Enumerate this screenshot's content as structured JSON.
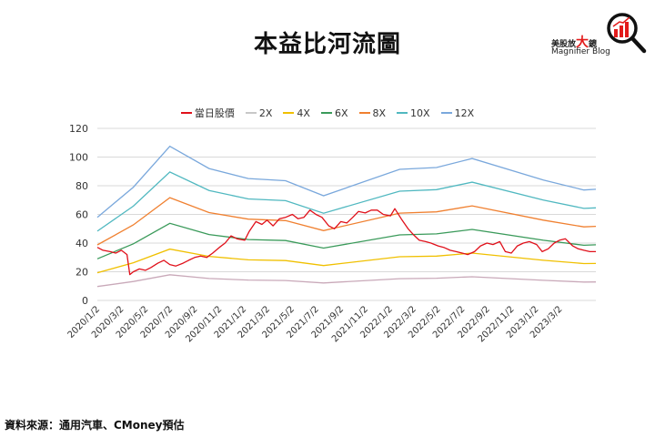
{
  "title": "本益比河流圖",
  "logo": {
    "text_cn_1": "美股放",
    "text_cn_big": "大",
    "text_cn_2": "鏡",
    "text_en": "Magnifier Blog",
    "icon": "magnifier-chart-icon"
  },
  "source": "資料來源：通用汽車、CMoney預估",
  "chart_data": {
    "type": "line",
    "title": "",
    "xlabel": "",
    "ylabel": "",
    "ylim": [
      0,
      120
    ],
    "yticks": [
      0,
      20,
      40,
      60,
      80,
      100,
      120
    ],
    "xlim": [
      "2020/1/2",
      "2023/5/31"
    ],
    "xticks": [
      "2020/1/2",
      "2020/3/2",
      "2020/5/2",
      "2020/7/2",
      "2020/9/2",
      "2020/11/2",
      "2021/1/2",
      "2021/3/2",
      "2021/5/2",
      "2021/7/2",
      "2021/9/2",
      "2021/11/2",
      "2022/1/2",
      "2022/3/2",
      "2022/5/2",
      "2022/7/2",
      "2022/9/2",
      "2022/11/2",
      "2023/1/2",
      "2023/3/2"
    ],
    "grid": true,
    "legend_position": "top",
    "price": {
      "name": "當日股價",
      "color": "#e0101a",
      "points": [
        [
          "2020/1/2",
          37
        ],
        [
          "2020/1/16",
          35
        ],
        [
          "2020/2/3",
          34
        ],
        [
          "2020/2/17",
          33
        ],
        [
          "2020/3/2",
          35
        ],
        [
          "2020/3/16",
          32
        ],
        [
          "2020/3/23",
          18
        ],
        [
          "2020/4/1",
          20
        ],
        [
          "2020/4/16",
          22
        ],
        [
          "2020/5/1",
          21
        ],
        [
          "2020/5/15",
          23
        ],
        [
          "2020/6/1",
          26
        ],
        [
          "2020/6/16",
          28
        ],
        [
          "2020/7/1",
          25
        ],
        [
          "2020/7/16",
          24
        ],
        [
          "2020/8/3",
          26
        ],
        [
          "2020/8/17",
          28
        ],
        [
          "2020/9/1",
          30
        ],
        [
          "2020/9/16",
          31
        ],
        [
          "2020/10/1",
          30
        ],
        [
          "2020/10/16",
          33
        ],
        [
          "2020/11/2",
          37
        ],
        [
          "2020/11/16",
          40
        ],
        [
          "2020/12/1",
          45
        ],
        [
          "2020/12/16",
          43
        ],
        [
          "2021/1/4",
          42
        ],
        [
          "2021/1/15",
          48
        ],
        [
          "2021/2/1",
          55
        ],
        [
          "2021/2/16",
          53
        ],
        [
          "2021/3/1",
          56
        ],
        [
          "2021/3/16",
          52
        ],
        [
          "2021/4/1",
          57
        ],
        [
          "2021/4/16",
          58
        ],
        [
          "2021/5/3",
          60
        ],
        [
          "2021/5/17",
          57
        ],
        [
          "2021/6/1",
          58
        ],
        [
          "2021/6/16",
          63
        ],
        [
          "2021/7/1",
          60
        ],
        [
          "2021/7/16",
          58
        ],
        [
          "2021/8/2",
          52
        ],
        [
          "2021/8/16",
          50
        ],
        [
          "2021/9/1",
          55
        ],
        [
          "2021/9/16",
          54
        ],
        [
          "2021/10/1",
          58
        ],
        [
          "2021/10/15",
          62
        ],
        [
          "2021/11/1",
          61
        ],
        [
          "2021/11/16",
          63
        ],
        [
          "2021/12/1",
          63
        ],
        [
          "2021/12/16",
          60
        ],
        [
          "2022/1/3",
          59
        ],
        [
          "2022/1/14",
          64
        ],
        [
          "2022/2/1",
          56
        ],
        [
          "2022/2/16",
          50
        ],
        [
          "2022/3/1",
          46
        ],
        [
          "2022/3/16",
          42
        ],
        [
          "2022/4/1",
          41
        ],
        [
          "2022/4/14",
          40
        ],
        [
          "2022/5/2",
          38
        ],
        [
          "2022/5/16",
          37
        ],
        [
          "2022/6/1",
          35
        ],
        [
          "2022/6/16",
          34
        ],
        [
          "2022/7/1",
          33
        ],
        [
          "2022/7/15",
          32
        ],
        [
          "2022/8/1",
          34
        ],
        [
          "2022/8/16",
          38
        ],
        [
          "2022/9/1",
          40
        ],
        [
          "2022/9/16",
          39
        ],
        [
          "2022/10/3",
          41
        ],
        [
          "2022/10/17",
          34
        ],
        [
          "2022/11/1",
          33
        ],
        [
          "2022/11/16",
          38
        ],
        [
          "2022/12/1",
          40
        ],
        [
          "2022/12/16",
          41
        ],
        [
          "2023/1/3",
          39
        ],
        [
          "2023/1/17",
          34
        ],
        [
          "2023/2/1",
          36
        ],
        [
          "2023/2/16",
          40
        ],
        [
          "2023/3/1",
          42
        ],
        [
          "2023/3/16",
          43
        ],
        [
          "2023/4/3",
          38
        ],
        [
          "2023/4/17",
          36
        ],
        [
          "2023/5/1",
          35
        ],
        [
          "2023/5/16",
          34
        ],
        [
          "2023/5/31",
          34
        ]
      ]
    },
    "band_dates": [
      "2020/1/2",
      "2020/4/1",
      "2020/7/1",
      "2020/10/7",
      "2021/1/13",
      "2021/4/16",
      "2021/7/20",
      "2022/1/26",
      "2022/4/28",
      "2022/7/26",
      "2023/1/20",
      "2023/5/1",
      "2023/5/31"
    ],
    "series": [
      {
        "name": "2X",
        "color": "#c9a9b9",
        "legend_color": "#c8c8c8",
        "values": [
          9.7,
          13.2,
          17.9,
          15.3,
          14.2,
          13.9,
          12.2,
          15.2,
          15.5,
          16.5,
          14,
          12.8,
          12.9
        ]
      },
      {
        "name": "4X",
        "color": "#f0c000",
        "values": [
          19.3,
          26.3,
          35.8,
          30.7,
          28.3,
          27.8,
          24.3,
          30.5,
          30.9,
          33,
          28,
          25.7,
          25.8
        ]
      },
      {
        "name": "6X",
        "color": "#3a9a5a",
        "values": [
          29,
          39.5,
          53.8,
          46,
          42.5,
          41.8,
          36.5,
          45.7,
          46.4,
          49.5,
          42,
          38.5,
          38.8
        ]
      },
      {
        "name": "8X",
        "color": "#f08030",
        "values": [
          38.7,
          52.7,
          71.7,
          61.3,
          56.7,
          55.7,
          48.7,
          60.9,
          61.8,
          66,
          56,
          51.3,
          51.7
        ]
      },
      {
        "name": "10X",
        "color": "#50b8c0",
        "values": [
          48.3,
          65.8,
          89.6,
          76.7,
          70.8,
          69.6,
          60.8,
          76.2,
          77.3,
          82.5,
          70,
          64.2,
          64.6
        ]
      },
      {
        "name": "12X",
        "color": "#7aa8dc",
        "values": [
          58,
          79,
          107.5,
          92,
          85,
          83.5,
          73,
          91.4,
          92.7,
          99,
          84,
          77,
          77.5
        ]
      }
    ]
  }
}
